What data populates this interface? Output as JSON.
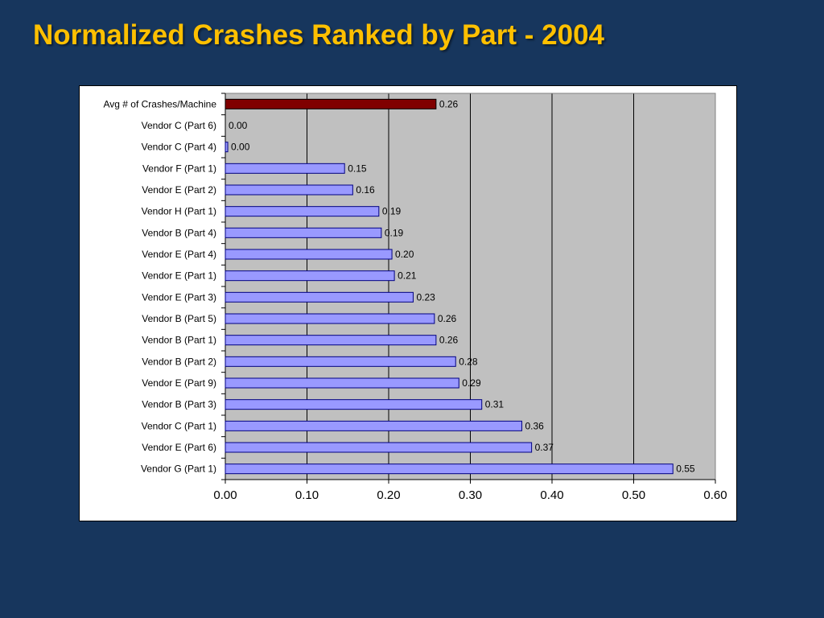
{
  "slide": {
    "title": "Normalized Crashes Ranked by Part - 2004"
  },
  "colors": {
    "background": "#17365d",
    "title": "#ffc000",
    "plot_area": "#c0c0c0",
    "bar_default": "#9999ff",
    "bar_highlight": "#800000",
    "bar_edge": "#000080"
  },
  "chart_data": {
    "type": "bar",
    "orientation": "horizontal",
    "title": "",
    "xlabel": "",
    "ylabel": "",
    "xlim": [
      0,
      0.6
    ],
    "x_ticks": [
      "0.00",
      "0.10",
      "0.20",
      "0.30",
      "0.40",
      "0.50",
      "0.60"
    ],
    "grid": true,
    "legend": "none",
    "categories": [
      "Avg # of Crashes/Machine",
      "Vendor C (Part 6)",
      "Vendor C (Part 4)",
      "Vendor F (Part 1)",
      "Vendor E (Part 2)",
      "Vendor H (Part 1)",
      "Vendor B (Part 4)",
      "Vendor E (Part 4)",
      "Vendor E (Part 1)",
      "Vendor E (Part 3)",
      "Vendor B (Part 5)",
      "Vendor B (Part 1)",
      "Vendor B (Part 2)",
      "Vendor E (Part 9)",
      "Vendor B (Part 3)",
      "Vendor C (Part 1)",
      "Vendor E (Part 6)",
      "Vendor G (Part 1)"
    ],
    "values": [
      0.258,
      0.0,
      0.003,
      0.146,
      0.156,
      0.188,
      0.191,
      0.204,
      0.207,
      0.23,
      0.256,
      0.258,
      0.282,
      0.286,
      0.314,
      0.363,
      0.375,
      0.548
    ],
    "value_labels": [
      "0.26",
      "0.00",
      "0.00",
      "0.15",
      "0.16",
      "0.19",
      "0.19",
      "0.20",
      "0.21",
      "0.23",
      "0.26",
      "0.26",
      "0.28",
      "0.29",
      "0.31",
      "0.36",
      "0.37",
      "0.55"
    ],
    "highlight_index": 0
  }
}
